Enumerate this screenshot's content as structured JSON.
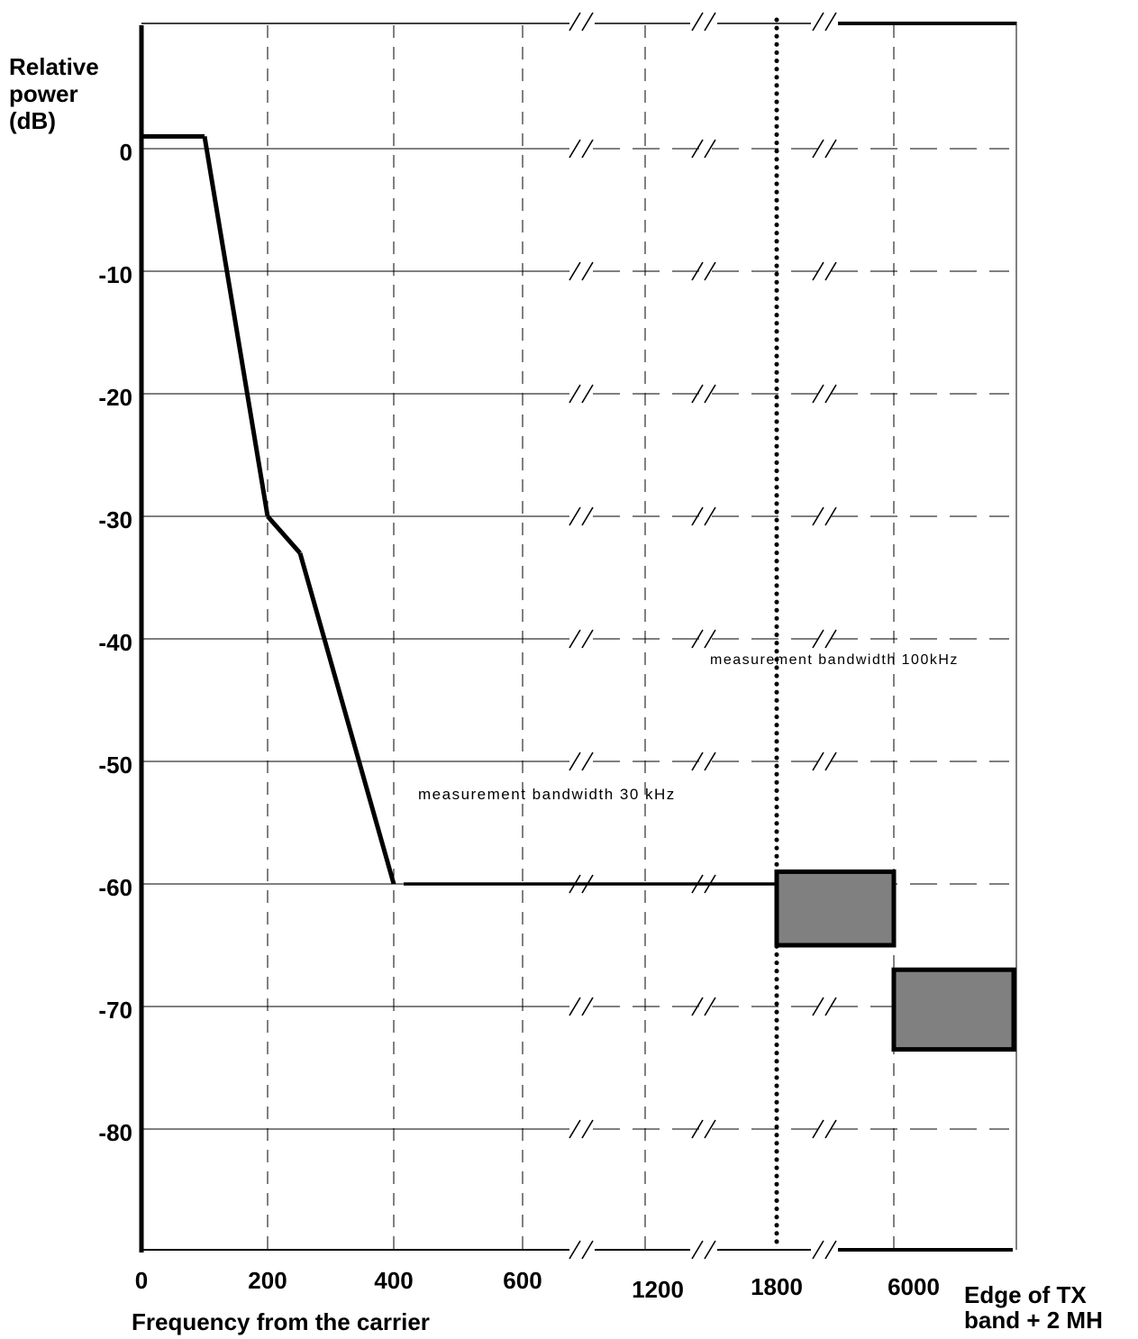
{
  "chart_data": {
    "type": "line",
    "ylabel": [
      "Relative",
      "power",
      "(dB)"
    ],
    "xlabel": "Frequency from the carrier",
    "x_end_label": [
      "Edge of TX",
      "band + 2 MH"
    ],
    "y_ticks": [
      "0",
      "-10",
      "-20",
      "-30",
      "-40",
      "-50",
      "-60",
      "-70",
      "-80"
    ],
    "ylim": [
      -90,
      10
    ],
    "x_ticks": [
      "0",
      "200",
      "400",
      "600",
      "1200",
      "1800",
      "6000"
    ],
    "grid": true,
    "axis_breaks": true,
    "series": [
      {
        "points": [
          {
            "x": "0",
            "y": 1
          },
          {
            "x": "100",
            "y": 1
          },
          {
            "x": "200",
            "y": -30
          },
          {
            "x": "250",
            "y": -33
          },
          {
            "x": "400",
            "y": -60
          },
          {
            "x": "1800",
            "y": -60
          }
        ]
      }
    ],
    "blocks": [
      {
        "x_from": "1800",
        "x_to": "6000",
        "y_top": -59,
        "y_bottom": -65
      },
      {
        "x_from": "6000",
        "x_to": "Edge of TX band + 2 MH",
        "y_top": -67,
        "y_bottom": -73.5
      }
    ],
    "annotations": [
      "measurement bandwidth 30 kHz",
      "measurement bandwidth 100kHz"
    ],
    "colors": {
      "line": "#000000",
      "block_fill": "#808080",
      "grid": "#000000"
    }
  }
}
